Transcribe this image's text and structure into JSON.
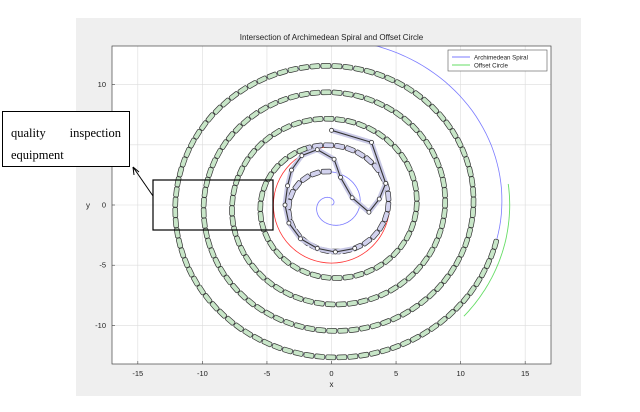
{
  "chart_data": {
    "type": "line",
    "title": "Intersection of Archimedean Spiral and Offset Circle",
    "xlabel": "x",
    "ylabel": "y",
    "xlim": [
      -17,
      17
    ],
    "ylim": [
      -13.2,
      13.2
    ],
    "xticks": [
      -15,
      -10,
      -5,
      0,
      5,
      10,
      15
    ],
    "yticks": [
      -10,
      -5,
      0,
      5,
      10
    ],
    "grid": true,
    "legend_position": "top-right",
    "series": [
      {
        "name": "Archimedean Spiral",
        "color": "#7b7bff",
        "equation": "r = 0.35*theta",
        "theta_range": [
          0,
          39.3
        ]
      },
      {
        "name": "Offset Circle",
        "color": "#66dd66",
        "center": [
          0,
          0
        ],
        "radius": 13.8,
        "visible_arc_deg": [
          -42,
          8
        ]
      }
    ],
    "red_circle": {
      "color": "#ff3333",
      "center": [
        0,
        0
      ],
      "radius": 4.5
    },
    "chain": {
      "color": "#333333",
      "segments": [
        {
          "fill": "#c9c9e6",
          "points": [
            [
              0,
              6.2
            ],
            [
              3.1,
              5.2
            ],
            [
              4.2,
              1.8
            ],
            [
              3.7,
              0.5
            ],
            [
              2.9,
              -0.6
            ],
            [
              1.6,
              0.6
            ],
            [
              0.7,
              2.3
            ],
            [
              0.2,
              3.8
            ],
            [
              -1.1,
              4.6
            ],
            [
              -2.3,
              4.1
            ],
            [
              -3.1,
              2.9
            ],
            [
              -3.4,
              1.6
            ],
            [
              -3.6,
              0
            ],
            [
              -3.3,
              -1.5
            ],
            [
              -2.4,
              -2.8
            ],
            [
              -1.1,
              -3.6
            ],
            [
              0.3,
              -3.9
            ],
            [
              1.8,
              -3.6
            ]
          ]
        }
      ],
      "green_links_start_theta": 14.6,
      "green_links_end_theta": 37.5,
      "inner_purple_links_start_theta": 8.0,
      "inner_purple_links_end_theta": 14.6
    }
  },
  "callout": {
    "line1_word1": "quality",
    "line1_word2": "inspection",
    "line2": "equipment"
  },
  "colors": {
    "plot_bg": "#ffffff",
    "figure_bg": "#efefef",
    "grid": "#dcdcdc",
    "axis": "#444444",
    "link_fill_green": "#c8e6c8",
    "link_fill_purple": "#d2d2ee"
  }
}
